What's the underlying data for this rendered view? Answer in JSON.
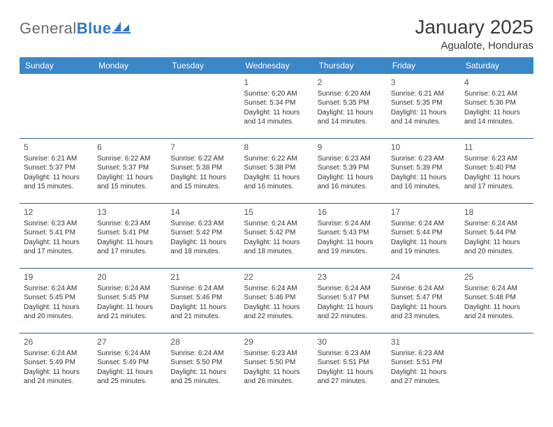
{
  "brand": {
    "part1": "General",
    "part2": "Blue"
  },
  "title": "January 2025",
  "location": "Agualote, Honduras",
  "header_color": "#3b87c8",
  "rule_color": "#2f5f8a",
  "weekdays": [
    "Sunday",
    "Monday",
    "Tuesday",
    "Wednesday",
    "Thursday",
    "Friday",
    "Saturday"
  ],
  "weeks": [
    [
      null,
      null,
      null,
      {
        "n": "1",
        "sr": "Sunrise: 6:20 AM",
        "ss": "Sunset: 5:34 PM",
        "d1": "Daylight: 11 hours",
        "d2": "and 14 minutes."
      },
      {
        "n": "2",
        "sr": "Sunrise: 6:20 AM",
        "ss": "Sunset: 5:35 PM",
        "d1": "Daylight: 11 hours",
        "d2": "and 14 minutes."
      },
      {
        "n": "3",
        "sr": "Sunrise: 6:21 AM",
        "ss": "Sunset: 5:35 PM",
        "d1": "Daylight: 11 hours",
        "d2": "and 14 minutes."
      },
      {
        "n": "4",
        "sr": "Sunrise: 6:21 AM",
        "ss": "Sunset: 5:36 PM",
        "d1": "Daylight: 11 hours",
        "d2": "and 14 minutes."
      }
    ],
    [
      {
        "n": "5",
        "sr": "Sunrise: 6:21 AM",
        "ss": "Sunset: 5:37 PM",
        "d1": "Daylight: 11 hours",
        "d2": "and 15 minutes."
      },
      {
        "n": "6",
        "sr": "Sunrise: 6:22 AM",
        "ss": "Sunset: 5:37 PM",
        "d1": "Daylight: 11 hours",
        "d2": "and 15 minutes."
      },
      {
        "n": "7",
        "sr": "Sunrise: 6:22 AM",
        "ss": "Sunset: 5:38 PM",
        "d1": "Daylight: 11 hours",
        "d2": "and 15 minutes."
      },
      {
        "n": "8",
        "sr": "Sunrise: 6:22 AM",
        "ss": "Sunset: 5:38 PM",
        "d1": "Daylight: 11 hours",
        "d2": "and 16 minutes."
      },
      {
        "n": "9",
        "sr": "Sunrise: 6:23 AM",
        "ss": "Sunset: 5:39 PM",
        "d1": "Daylight: 11 hours",
        "d2": "and 16 minutes."
      },
      {
        "n": "10",
        "sr": "Sunrise: 6:23 AM",
        "ss": "Sunset: 5:39 PM",
        "d1": "Daylight: 11 hours",
        "d2": "and 16 minutes."
      },
      {
        "n": "11",
        "sr": "Sunrise: 6:23 AM",
        "ss": "Sunset: 5:40 PM",
        "d1": "Daylight: 11 hours",
        "d2": "and 17 minutes."
      }
    ],
    [
      {
        "n": "12",
        "sr": "Sunrise: 6:23 AM",
        "ss": "Sunset: 5:41 PM",
        "d1": "Daylight: 11 hours",
        "d2": "and 17 minutes."
      },
      {
        "n": "13",
        "sr": "Sunrise: 6:23 AM",
        "ss": "Sunset: 5:41 PM",
        "d1": "Daylight: 11 hours",
        "d2": "and 17 minutes."
      },
      {
        "n": "14",
        "sr": "Sunrise: 6:23 AM",
        "ss": "Sunset: 5:42 PM",
        "d1": "Daylight: 11 hours",
        "d2": "and 18 minutes."
      },
      {
        "n": "15",
        "sr": "Sunrise: 6:24 AM",
        "ss": "Sunset: 5:42 PM",
        "d1": "Daylight: 11 hours",
        "d2": "and 18 minutes."
      },
      {
        "n": "16",
        "sr": "Sunrise: 6:24 AM",
        "ss": "Sunset: 5:43 PM",
        "d1": "Daylight: 11 hours",
        "d2": "and 19 minutes."
      },
      {
        "n": "17",
        "sr": "Sunrise: 6:24 AM",
        "ss": "Sunset: 5:44 PM",
        "d1": "Daylight: 11 hours",
        "d2": "and 19 minutes."
      },
      {
        "n": "18",
        "sr": "Sunrise: 6:24 AM",
        "ss": "Sunset: 5:44 PM",
        "d1": "Daylight: 11 hours",
        "d2": "and 20 minutes."
      }
    ],
    [
      {
        "n": "19",
        "sr": "Sunrise: 6:24 AM",
        "ss": "Sunset: 5:45 PM",
        "d1": "Daylight: 11 hours",
        "d2": "and 20 minutes."
      },
      {
        "n": "20",
        "sr": "Sunrise: 6:24 AM",
        "ss": "Sunset: 5:45 PM",
        "d1": "Daylight: 11 hours",
        "d2": "and 21 minutes."
      },
      {
        "n": "21",
        "sr": "Sunrise: 6:24 AM",
        "ss": "Sunset: 5:46 PM",
        "d1": "Daylight: 11 hours",
        "d2": "and 21 minutes."
      },
      {
        "n": "22",
        "sr": "Sunrise: 6:24 AM",
        "ss": "Sunset: 5:46 PM",
        "d1": "Daylight: 11 hours",
        "d2": "and 22 minutes."
      },
      {
        "n": "23",
        "sr": "Sunrise: 6:24 AM",
        "ss": "Sunset: 5:47 PM",
        "d1": "Daylight: 11 hours",
        "d2": "and 22 minutes."
      },
      {
        "n": "24",
        "sr": "Sunrise: 6:24 AM",
        "ss": "Sunset: 5:47 PM",
        "d1": "Daylight: 11 hours",
        "d2": "and 23 minutes."
      },
      {
        "n": "25",
        "sr": "Sunrise: 6:24 AM",
        "ss": "Sunset: 5:48 PM",
        "d1": "Daylight: 11 hours",
        "d2": "and 24 minutes."
      }
    ],
    [
      {
        "n": "26",
        "sr": "Sunrise: 6:24 AM",
        "ss": "Sunset: 5:49 PM",
        "d1": "Daylight: 11 hours",
        "d2": "and 24 minutes."
      },
      {
        "n": "27",
        "sr": "Sunrise: 6:24 AM",
        "ss": "Sunset: 5:49 PM",
        "d1": "Daylight: 11 hours",
        "d2": "and 25 minutes."
      },
      {
        "n": "28",
        "sr": "Sunrise: 6:24 AM",
        "ss": "Sunset: 5:50 PM",
        "d1": "Daylight: 11 hours",
        "d2": "and 25 minutes."
      },
      {
        "n": "29",
        "sr": "Sunrise: 6:23 AM",
        "ss": "Sunset: 5:50 PM",
        "d1": "Daylight: 11 hours",
        "d2": "and 26 minutes."
      },
      {
        "n": "30",
        "sr": "Sunrise: 6:23 AM",
        "ss": "Sunset: 5:51 PM",
        "d1": "Daylight: 11 hours",
        "d2": "and 27 minutes."
      },
      {
        "n": "31",
        "sr": "Sunrise: 6:23 AM",
        "ss": "Sunset: 5:51 PM",
        "d1": "Daylight: 11 hours",
        "d2": "and 27 minutes."
      },
      null
    ]
  ]
}
